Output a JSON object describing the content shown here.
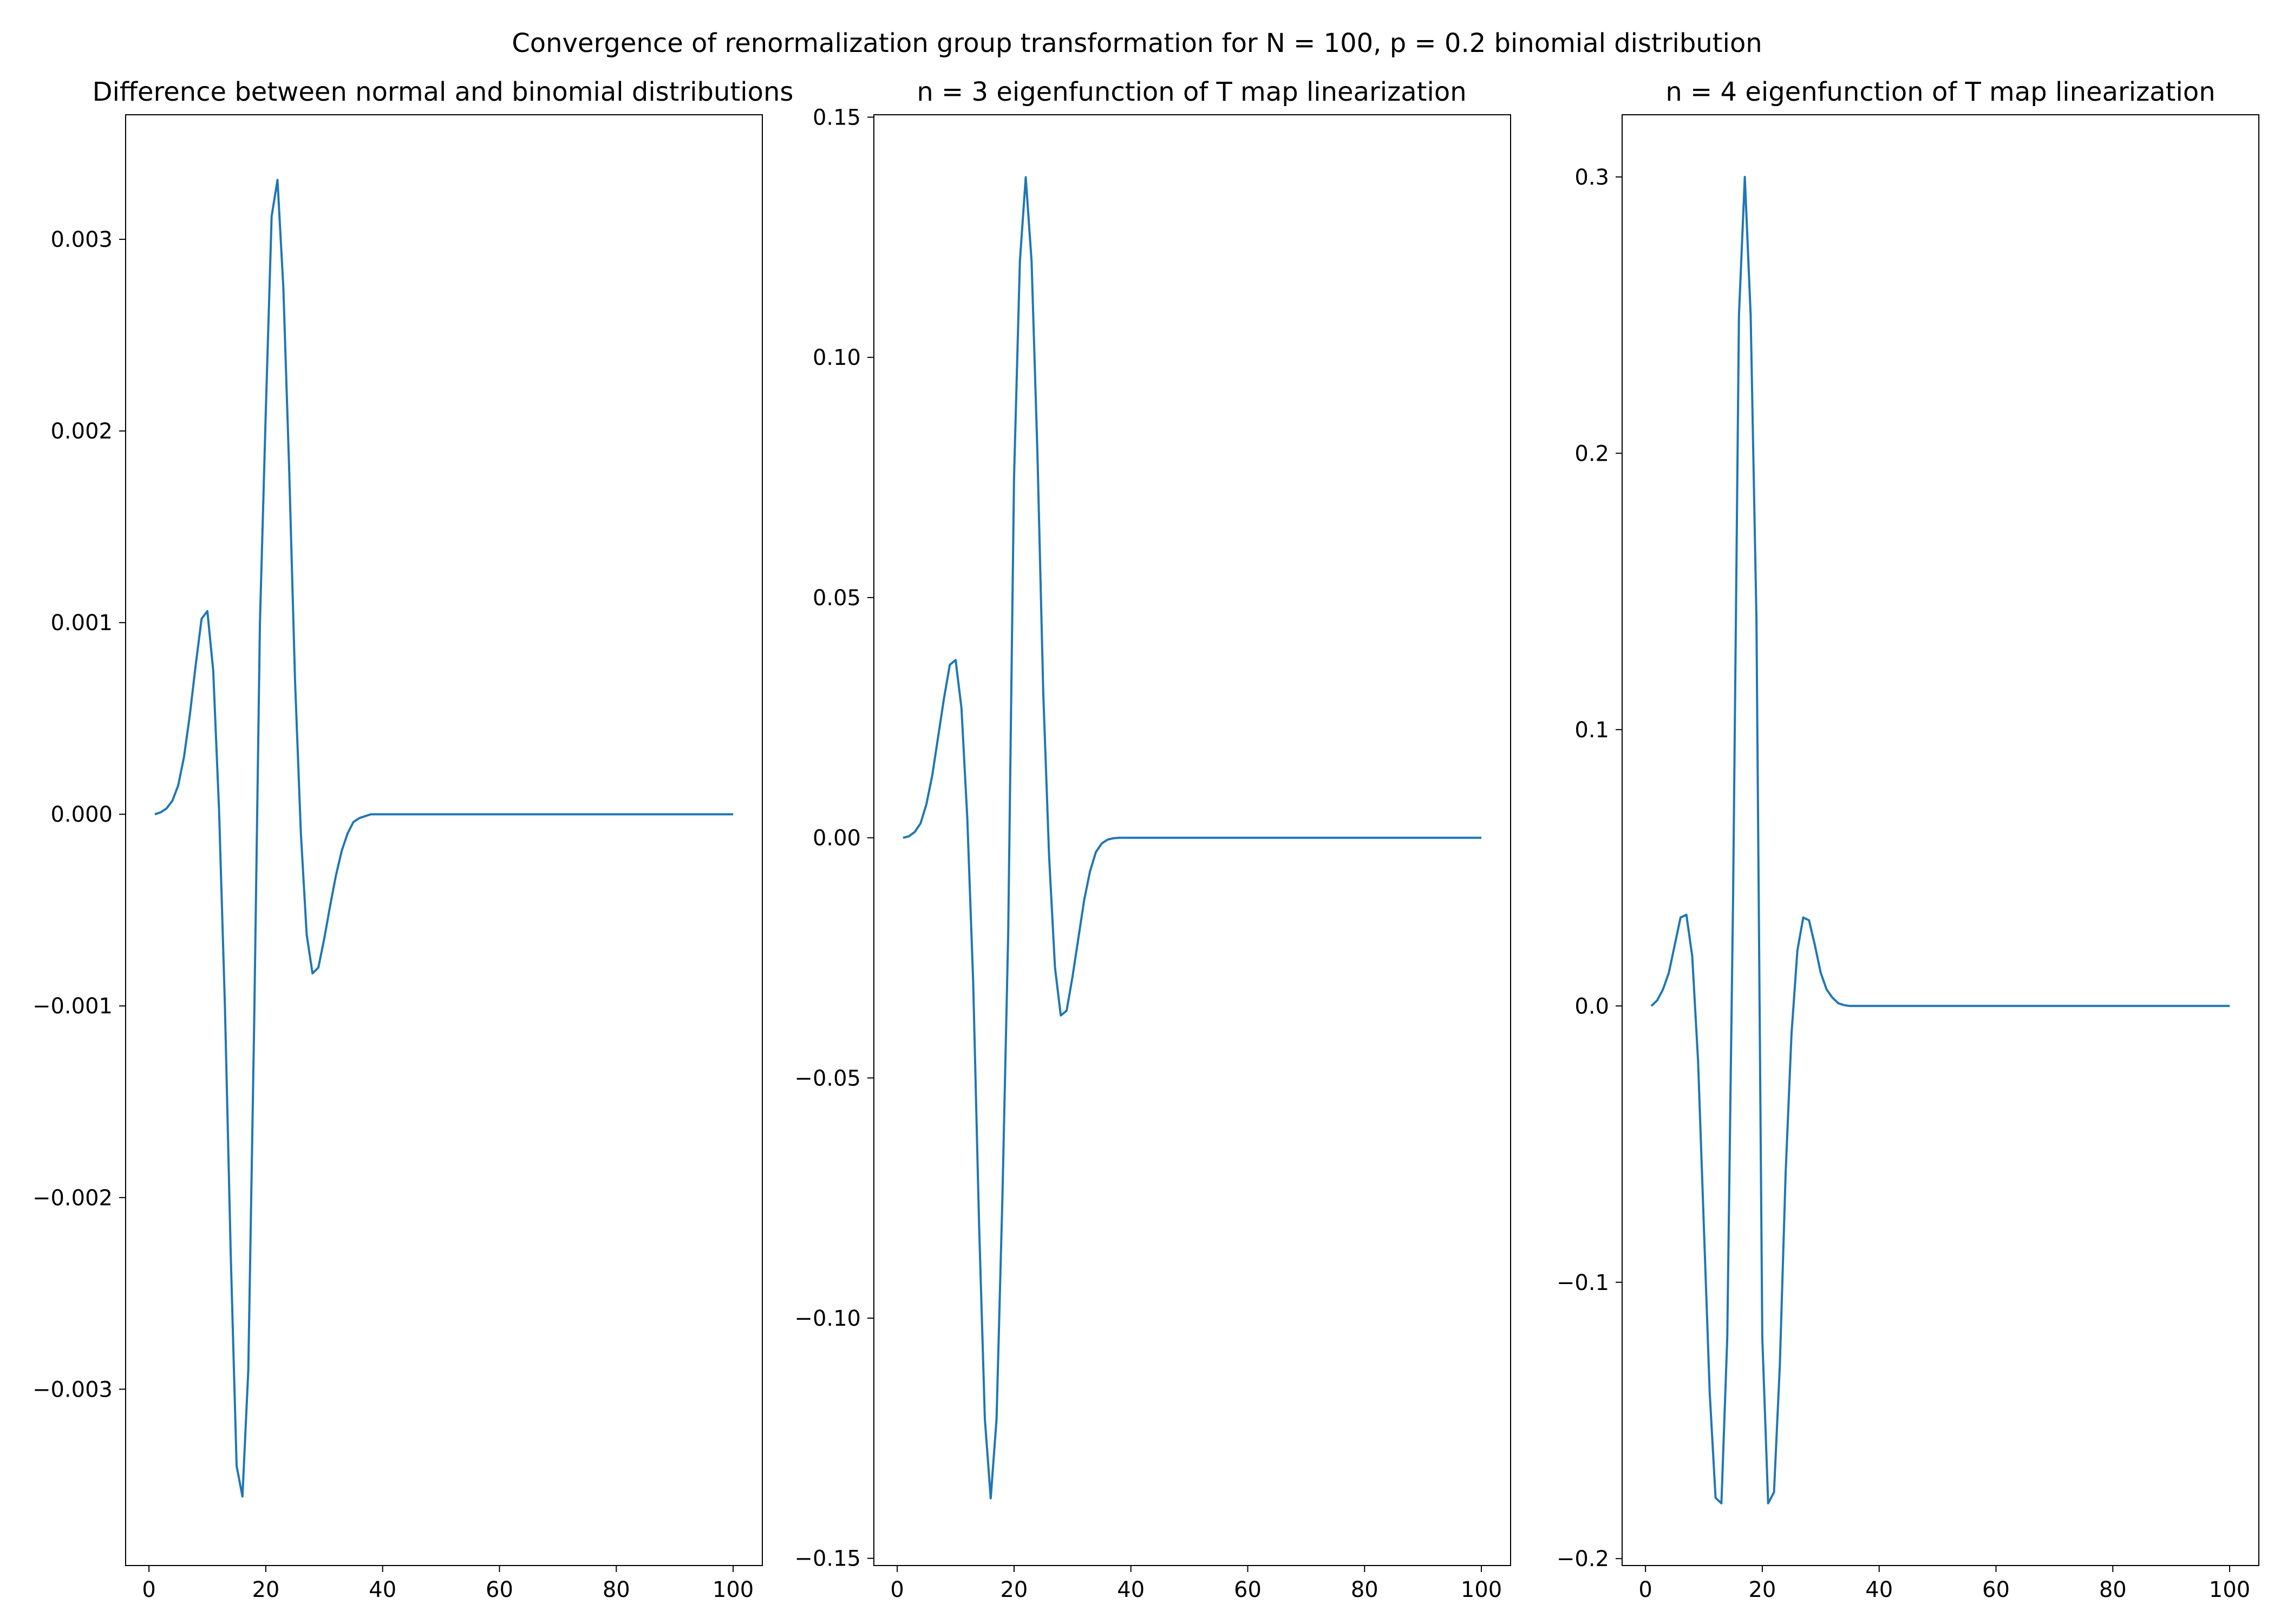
{
  "figure": {
    "suptitle": "Convergence of renormalization group transformation for N = 100, p = 0.2 binomial distribution",
    "line_color": "#1f77b4"
  },
  "chart_data": [
    {
      "type": "line",
      "title": "Difference between normal and binomial distributions",
      "xlabel": "",
      "ylabel": "",
      "xlim": [
        -4,
        105
      ],
      "ylim": [
        -0.00392,
        0.00365
      ],
      "xticks": [
        0,
        20,
        40,
        60,
        80,
        100
      ],
      "xtick_labels": [
        "0",
        "20",
        "40",
        "60",
        "80",
        "100"
      ],
      "yticks": [
        -0.003,
        -0.002,
        -0.001,
        0,
        0.001,
        0.002,
        0.003
      ],
      "ytick_labels": [
        "−0.003",
        "−0.002",
        "−0.001",
        "0.000",
        "0.001",
        "0.002",
        "0.003"
      ],
      "grid": false,
      "series": [
        {
          "x": [
            1,
            2,
            3,
            4,
            5,
            6,
            7,
            8,
            9,
            10,
            11,
            12,
            13,
            14,
            15,
            16,
            17,
            18,
            19,
            20,
            21,
            22,
            23,
            24,
            25,
            26,
            27,
            28,
            29,
            30,
            31,
            32,
            33,
            34,
            35,
            36,
            37,
            38,
            39,
            40,
            42,
            45,
            50,
            100
          ],
          "y": [
            0,
            1e-05,
            3e-05,
            7e-05,
            0.00015,
            0.0003,
            0.00052,
            0.00078,
            0.00102,
            0.00106,
            0.00075,
            2e-05,
            -0.001,
            -0.0023,
            -0.0034,
            -0.00356,
            -0.0029,
            -0.0011,
            0.001,
            0.0021,
            0.00312,
            0.00331,
            0.00275,
            0.0018,
            0.0007,
            -0.0001,
            -0.00063,
            -0.00083,
            -0.0008,
            -0.00065,
            -0.00048,
            -0.00032,
            -0.00019,
            -0.0001,
            -4e-05,
            -2e-05,
            -1e-05,
            0,
            0,
            0,
            0,
            0,
            0,
            0
          ]
        }
      ]
    },
    {
      "type": "line",
      "title": "n = 3 eigenfunction of T map linearization",
      "xlabel": "",
      "ylabel": "",
      "xlim": [
        -4,
        105
      ],
      "ylim": [
        -0.1515,
        0.1505
      ],
      "xticks": [
        0,
        20,
        40,
        60,
        80,
        100
      ],
      "xtick_labels": [
        "0",
        "20",
        "40",
        "60",
        "80",
        "100"
      ],
      "yticks": [
        -0.15,
        -0.1,
        -0.05,
        0,
        0.05,
        0.1,
        0.15
      ],
      "ytick_labels": [
        "−0.15",
        "−0.10",
        "−0.05",
        "0.00",
        "0.05",
        "0.10",
        "0.15"
      ],
      "grid": false,
      "series": [
        {
          "x": [
            1,
            2,
            3,
            4,
            5,
            6,
            7,
            8,
            9,
            10,
            11,
            12,
            13,
            14,
            15,
            16,
            17,
            18,
            19,
            20,
            21,
            22,
            23,
            24,
            25,
            26,
            27,
            28,
            29,
            30,
            31,
            32,
            33,
            34,
            35,
            36,
            37,
            38,
            39,
            40,
            42,
            45,
            50,
            100
          ],
          "y": [
            0,
            0.0003,
            0.0012,
            0.003,
            0.007,
            0.013,
            0.021,
            0.029,
            0.036,
            0.037,
            0.027,
            0.004,
            -0.03,
            -0.08,
            -0.121,
            -0.1375,
            -0.121,
            -0.075,
            -0.02,
            0.075,
            0.12,
            0.1375,
            0.12,
            0.08,
            0.03,
            -0.004,
            -0.027,
            -0.037,
            -0.036,
            -0.029,
            -0.021,
            -0.013,
            -0.007,
            -0.003,
            -0.0012,
            -0.0004,
            -0.0001,
            0,
            0,
            0,
            0,
            0,
            0,
            0
          ]
        }
      ]
    },
    {
      "type": "line",
      "title": "n = 4 eigenfunction of T map linearization",
      "xlabel": "",
      "ylabel": "",
      "xlim": [
        -4,
        105
      ],
      "ylim": [
        -0.2025,
        0.3225
      ],
      "xticks": [
        0,
        20,
        40,
        60,
        80,
        100
      ],
      "xtick_labels": [
        "0",
        "20",
        "40",
        "60",
        "80",
        "100"
      ],
      "yticks": [
        -0.2,
        -0.1,
        0,
        0.1,
        0.2,
        0.3
      ],
      "ytick_labels": [
        "−0.2",
        "−0.1",
        "0.0",
        "0.1",
        "0.2",
        "0.3"
      ],
      "grid": false,
      "series": [
        {
          "x": [
            1,
            2,
            3,
            4,
            5,
            6,
            7,
            8,
            9,
            10,
            11,
            12,
            13,
            14,
            15,
            16,
            17,
            18,
            19,
            20,
            21,
            22,
            23,
            24,
            25,
            26,
            27,
            28,
            29,
            30,
            31,
            32,
            33,
            34,
            35,
            36,
            37,
            38,
            39,
            40,
            42,
            45,
            50,
            100
          ],
          "y": [
            0,
            0.002,
            0.006,
            0.012,
            0.022,
            0.032,
            0.033,
            0.018,
            -0.02,
            -0.08,
            -0.14,
            -0.178,
            -0.18,
            -0.12,
            0.04,
            0.25,
            0.3,
            0.25,
            0.14,
            -0.12,
            -0.18,
            -0.176,
            -0.13,
            -0.06,
            -0.01,
            0.02,
            0.032,
            0.031,
            0.022,
            0.012,
            0.006,
            0.003,
            0.001,
            0.0003,
            0,
            0,
            0,
            0,
            0,
            0,
            0,
            0,
            0,
            0
          ]
        }
      ]
    }
  ]
}
